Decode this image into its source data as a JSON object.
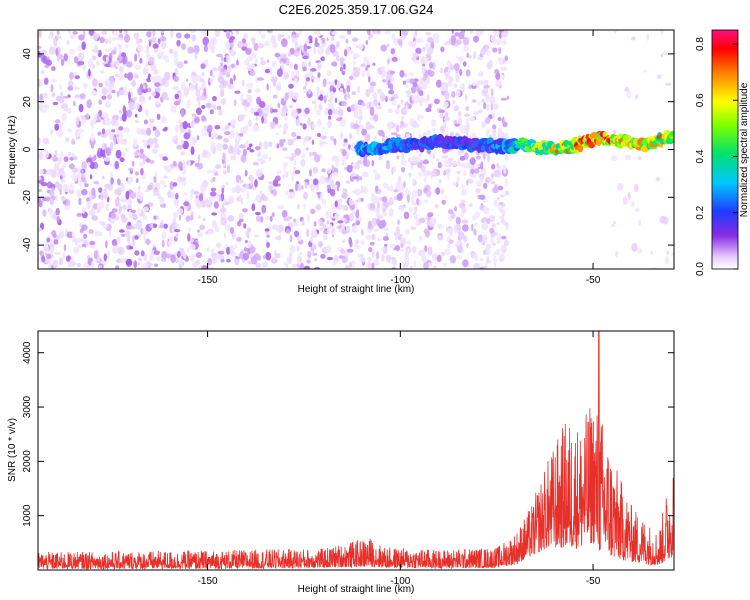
{
  "title": "C2E6.2025.359.17.06.G24",
  "chart_data": [
    {
      "type": "heatmap",
      "title": "C2E6.2025.359.17.06.G24",
      "xlabel": "Height of straight line (km)",
      "ylabel": "Frequency (Hz)",
      "xlim": [
        -194,
        -29
      ],
      "ylim": [
        -50,
        50
      ],
      "x_ticks": [
        -150,
        -100,
        -50
      ],
      "y_ticks": [
        -40,
        -20,
        0,
        20,
        40
      ],
      "noise_regions": [
        {
          "x_from": -194,
          "x_to": -112,
          "amplitude": [
            0.02,
            0.1
          ]
        },
        {
          "x_from": -112,
          "x_to": -72,
          "amplitude": [
            0.02,
            0.08
          ]
        },
        {
          "x_from": -45,
          "x_to": -29,
          "amplitude": [
            0.02,
            0.04
          ]
        }
      ],
      "signal_band": [
        {
          "x": -111,
          "freq": 0,
          "amplitude": 0.3
        },
        {
          "x": -105,
          "freq": 1,
          "amplitude": 0.3
        },
        {
          "x": -99,
          "freq": 2,
          "amplitude": 0.25
        },
        {
          "x": -90,
          "freq": 3,
          "amplitude": 0.22
        },
        {
          "x": -80,
          "freq": 2,
          "amplitude": 0.22
        },
        {
          "x": -72,
          "freq": 1,
          "amplitude": 0.3
        },
        {
          "x": -68,
          "freq": 2,
          "amplitude": 0.45
        },
        {
          "x": -64,
          "freq": 1,
          "amplitude": 0.55
        },
        {
          "x": -60,
          "freq": 0,
          "amplitude": 0.62
        },
        {
          "x": -56,
          "freq": 1,
          "amplitude": 0.68
        },
        {
          "x": -52,
          "freq": 3,
          "amplitude": 0.72
        },
        {
          "x": -48,
          "freq": 5,
          "amplitude": 0.78
        },
        {
          "x": -44,
          "freq": 4,
          "amplitude": 0.7
        },
        {
          "x": -40,
          "freq": 3,
          "amplitude": 0.65
        },
        {
          "x": -36,
          "freq": 2,
          "amplitude": 0.6
        },
        {
          "x": -32,
          "freq": 4,
          "amplitude": 0.68
        },
        {
          "x": -29,
          "freq": 6,
          "amplitude": 0.7
        }
      ],
      "colorbar": {
        "label": "Normalized spectral amplitude",
        "range": [
          0,
          0.85
        ],
        "ticks": [
          "0.0",
          "0.2",
          "0.4",
          "0.6",
          "0.8"
        ],
        "tick_values": [
          0.0,
          0.2,
          0.4,
          0.6,
          0.8
        ]
      }
    },
    {
      "type": "line",
      "xlabel": "Height of straight line (km)",
      "ylabel": "SNR (10 * v/v)",
      "xlim": [
        -194,
        -29
      ],
      "ylim": [
        0,
        4400
      ],
      "x_ticks": [
        -150,
        -100,
        -50
      ],
      "y_ticks": [
        1000,
        2000,
        3000,
        4000
      ],
      "line_color": "#e8302a",
      "envelope": [
        {
          "x": -194,
          "lo": 20,
          "hi": 330
        },
        {
          "x": -150,
          "lo": 20,
          "hi": 360
        },
        {
          "x": -120,
          "lo": 40,
          "hi": 400
        },
        {
          "x": -108,
          "lo": 60,
          "hi": 600
        },
        {
          "x": -104,
          "lo": 40,
          "hi": 420
        },
        {
          "x": -90,
          "lo": 30,
          "hi": 380
        },
        {
          "x": -75,
          "lo": 40,
          "hi": 420
        },
        {
          "x": -70,
          "lo": 100,
          "hi": 700
        },
        {
          "x": -66,
          "lo": 250,
          "hi": 1200
        },
        {
          "x": -62,
          "lo": 400,
          "hi": 2000
        },
        {
          "x": -57,
          "lo": 400,
          "hi": 2800
        },
        {
          "x": -53,
          "lo": 400,
          "hi": 2700
        },
        {
          "x": -50,
          "lo": 500,
          "hi": 3200
        },
        {
          "x": -48,
          "lo": 300,
          "hi": 2900
        },
        {
          "x": -44,
          "lo": 200,
          "hi": 1900
        },
        {
          "x": -40,
          "lo": 150,
          "hi": 1200
        },
        {
          "x": -36,
          "lo": 100,
          "hi": 900
        },
        {
          "x": -33,
          "lo": 80,
          "hi": 700
        },
        {
          "x": -30,
          "lo": 200,
          "hi": 1800
        },
        {
          "x": -29,
          "lo": 300,
          "hi": 2200
        }
      ],
      "peak": {
        "x": -48.5,
        "y": 4400
      }
    }
  ]
}
